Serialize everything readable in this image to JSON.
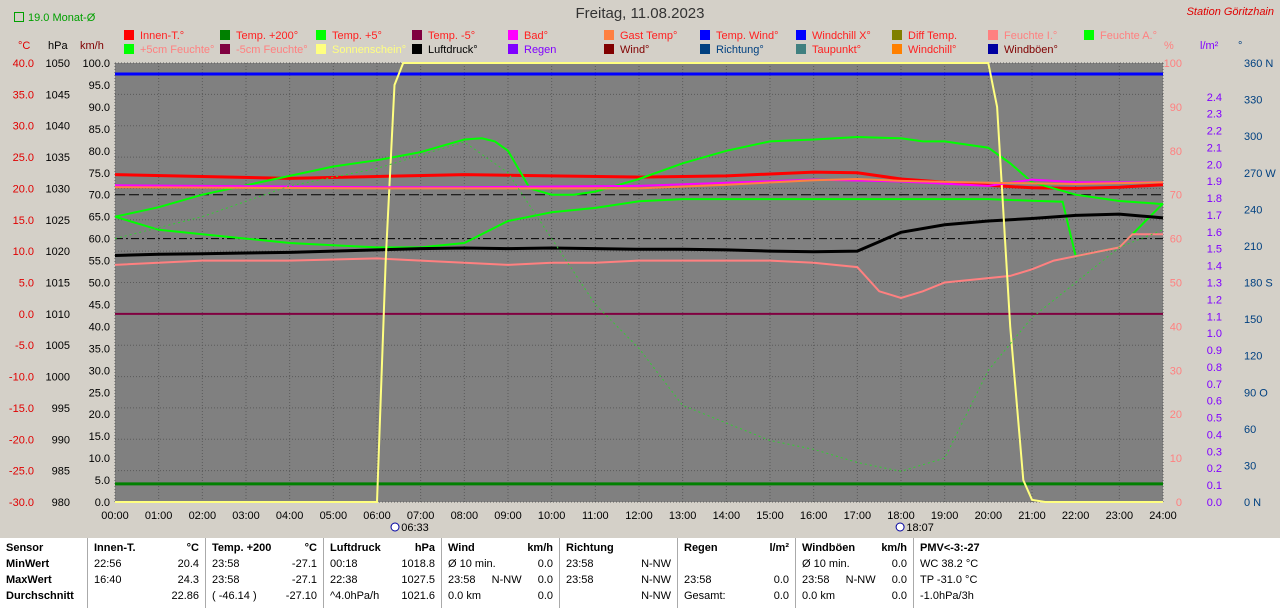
{
  "title": "Freitag, 11.08.2023",
  "station": "Station Göritzhain",
  "average_label": "19.0 Monat-Ø",
  "units": {
    "c": "°C",
    "hpa": "hPa",
    "kmh": "km/h",
    "pct": "%",
    "lm2": "l/m²",
    "deg": "°"
  },
  "legend": [
    {
      "label": "Innen-T.°",
      "color": "#ff0000",
      "text_color": "#ff2020"
    },
    {
      "label": "Temp. +200°",
      "color": "#008000",
      "text_color": "#ff2020"
    },
    {
      "label": "Temp. +5°",
      "color": "#00ff00",
      "text_color": "#ff2020"
    },
    {
      "label": "Temp. -5°",
      "color": "#800040",
      "text_color": "#ff2020"
    },
    {
      "label": "Bad°",
      "color": "#ff00ff",
      "text_color": "#ff2020"
    },
    {
      "label": "Gast Temp°",
      "color": "#ff8040",
      "text_color": "#ff2020"
    },
    {
      "label": "Temp. Wind°",
      "color": "#0000ff",
      "text_color": "#ff2020"
    },
    {
      "label": "Windchill X°",
      "color": "#0000ff",
      "text_color": "#ff2020"
    },
    {
      "label": "Diff Temp.",
      "color": "#808000",
      "text_color": "#ff2020"
    },
    {
      "label": "Feuchte I.°",
      "color": "#ff8080",
      "text_color": "#ff8080"
    },
    {
      "label": "Feuchte A.°",
      "color": "#00ff00",
      "text_color": "#ff8080"
    },
    {
      "label": "+5cm Feuchte°",
      "color": "#00ff00",
      "text_color": "#ff8080"
    },
    {
      "label": "-5cm Feuchte°",
      "color": "#800040",
      "text_color": "#ff8080"
    },
    {
      "label": "Sonnenschein°",
      "color": "#ffff80",
      "text_color": "#ffff80"
    },
    {
      "label": "Luftdruck°",
      "color": "#000000",
      "text_color": "#000000"
    },
    {
      "label": "Regen",
      "color": "#8000ff",
      "text_color": "#8000ff"
    },
    {
      "label": "Wind°",
      "color": "#800000",
      "text_color": "#800000"
    },
    {
      "label": "Richtung°",
      "color": "#004080",
      "text_color": "#004080"
    },
    {
      "label": "Taupunkt°",
      "color": "#408080",
      "text_color": "#ff2020"
    },
    {
      "label": "Windchill°",
      "color": "#ff8000",
      "text_color": "#ff2020"
    },
    {
      "label": "Windböen°",
      "color": "#0000a0",
      "text_color": "#800000"
    }
  ],
  "chart_data": {
    "type": "line",
    "title": "Freitag, 11.08.2023",
    "x_ticks": [
      "00:00",
      "01:00",
      "02:00",
      "03:00",
      "04:00",
      "05:00",
      "06:00",
      "07:00",
      "08:00",
      "09:00",
      "10:00",
      "11:00",
      "12:00",
      "13:00",
      "14:00",
      "15:00",
      "16:00",
      "17:00",
      "18:00",
      "19:00",
      "20:00",
      "21:00",
      "22:00",
      "23:00",
      "24:00"
    ],
    "axes": {
      "temp_c": [
        "40.0",
        "35.0",
        "30.0",
        "25.0",
        "20.0",
        "15.0",
        "10.0",
        "5.0",
        "0.0",
        "-5.0",
        "-10.0",
        "-15.0",
        "-20.0",
        "-25.0",
        "-30.0"
      ],
      "pressure_hpa": [
        "1050",
        "1045",
        "1040",
        "1035",
        "1030",
        "1025",
        "1020",
        "1015",
        "1010",
        "1005",
        "1000",
        "995",
        "990",
        "985",
        "980"
      ],
      "wind_kmh": [
        "100.0",
        "95.0",
        "90.0",
        "85.0",
        "80.0",
        "75.0",
        "70.0",
        "65.0",
        "60.0",
        "55.0",
        "50.0",
        "45.0",
        "40.0",
        "35.0",
        "30.0",
        "25.0",
        "20.0",
        "15.0",
        "10.0",
        "5.0",
        "0.0"
      ],
      "humidity_pct": [
        "100",
        "90",
        "80",
        "70",
        "60",
        "50",
        "40",
        "30",
        "20",
        "10",
        "0"
      ],
      "rain_lm2": [
        "2.4",
        "2.3",
        "2.2",
        "2.1",
        "2.0",
        "1.9",
        "1.8",
        "1.7",
        "1.6",
        "1.5",
        "1.4",
        "1.3",
        "1.2",
        "1.1",
        "1.0",
        "0.9",
        "0.8",
        "0.7",
        "0.6",
        "0.5",
        "0.4",
        "0.3",
        "0.2",
        "0.1",
        "0.0"
      ],
      "direction_deg": [
        "360 N",
        "330",
        "300",
        "270 W",
        "240",
        "210",
        "180 S",
        "150",
        "120",
        "90 O",
        "60",
        "30",
        "0 N"
      ]
    },
    "ylim_temp": [
      -30,
      40
    ],
    "ylim_humidity": [
      0,
      100
    ],
    "sunrise": "06:33",
    "sunset": "18:07",
    "series": [
      {
        "name": "Innen-T.°",
        "color": "#ff0000",
        "axis": "temp",
        "points": [
          [
            0,
            22.2
          ],
          [
            2,
            21.9
          ],
          [
            4,
            21.6
          ],
          [
            6,
            21.9
          ],
          [
            8,
            22.2
          ],
          [
            10,
            22.0
          ],
          [
            12,
            21.8
          ],
          [
            14,
            22.0
          ],
          [
            16,
            22.6
          ],
          [
            17,
            22.5
          ],
          [
            18,
            21.5
          ],
          [
            19,
            21.0
          ],
          [
            20,
            20.5
          ],
          [
            21,
            20.1
          ],
          [
            22,
            20.0
          ],
          [
            23,
            20.2
          ],
          [
            24,
            20.6
          ]
        ]
      },
      {
        "name": "Temp. +5°",
        "color": "#00ff00",
        "axis": "temp",
        "points": [
          [
            0,
            15.5
          ],
          [
            1,
            17
          ],
          [
            2,
            19
          ],
          [
            3,
            20.5
          ],
          [
            4,
            22
          ],
          [
            5,
            23.5
          ],
          [
            6,
            24.5
          ],
          [
            7,
            25.8
          ],
          [
            8,
            27.8
          ],
          [
            8.4,
            28
          ],
          [
            8.7,
            27.5
          ],
          [
            9,
            26
          ],
          [
            9.5,
            20
          ],
          [
            10,
            19
          ],
          [
            10.5,
            19
          ],
          [
            11,
            19.5
          ],
          [
            12,
            21.5
          ],
          [
            13,
            24
          ],
          [
            14,
            26
          ],
          [
            15,
            27.5
          ],
          [
            16,
            27.8
          ],
          [
            17,
            28.2
          ],
          [
            18,
            28
          ],
          [
            18.5,
            27.5
          ],
          [
            19,
            27.5
          ],
          [
            20,
            26.5
          ],
          [
            20.5,
            24
          ],
          [
            21,
            21
          ],
          [
            22,
            19
          ],
          [
            23,
            18
          ],
          [
            24,
            17.5
          ]
        ]
      },
      {
        "name": "Feuchte A.°",
        "color": "#00ff00",
        "axis": "hum",
        "points": [
          [
            0,
            65
          ],
          [
            1,
            62
          ],
          [
            2,
            61
          ],
          [
            3,
            60
          ],
          [
            4,
            59
          ],
          [
            5,
            58.5
          ],
          [
            6,
            58
          ],
          [
            7,
            58
          ],
          [
            8,
            59
          ],
          [
            9,
            64
          ],
          [
            10,
            66
          ],
          [
            11,
            67
          ],
          [
            12,
            68.5
          ],
          [
            13,
            69
          ],
          [
            14,
            69
          ],
          [
            15,
            69
          ],
          [
            16,
            69
          ],
          [
            17,
            69
          ],
          [
            18,
            69
          ],
          [
            19,
            69
          ],
          [
            20,
            69
          ],
          [
            21,
            68.6
          ],
          [
            21.7,
            68.4
          ],
          [
            22,
            56
          ],
          [
            23,
            58
          ],
          [
            24,
            68
          ]
        ]
      },
      {
        "name": "Feuchte I.°",
        "color": "#ff8080",
        "axis": "hum",
        "points": [
          [
            0,
            54
          ],
          [
            2,
            55
          ],
          [
            4,
            55
          ],
          [
            6,
            55.5
          ],
          [
            7,
            55
          ],
          [
            8,
            54.5
          ],
          [
            9,
            54
          ],
          [
            10,
            54.5
          ],
          [
            11,
            54.5
          ],
          [
            12,
            55
          ],
          [
            13,
            55
          ],
          [
            14,
            55
          ],
          [
            15,
            55
          ],
          [
            16,
            54.5
          ],
          [
            17,
            53.5
          ],
          [
            17.5,
            48
          ],
          [
            18,
            46.5
          ],
          [
            18.5,
            48
          ],
          [
            19,
            50
          ],
          [
            20,
            51
          ],
          [
            20.5,
            51.5
          ],
          [
            21,
            53
          ],
          [
            21.5,
            55
          ],
          [
            22,
            56
          ],
          [
            23,
            58
          ],
          [
            23.3,
            61
          ],
          [
            24,
            61
          ]
        ]
      },
      {
        "name": "Luftdruck°",
        "color": "#000000",
        "axis": "press",
        "points": [
          [
            0,
            1019.3
          ],
          [
            1,
            1019.5
          ],
          [
            2,
            1019.6
          ],
          [
            3,
            1019.7
          ],
          [
            4,
            1019.8
          ],
          [
            5,
            1020.0
          ],
          [
            6,
            1020.2
          ],
          [
            7,
            1020.4
          ],
          [
            8,
            1020.5
          ],
          [
            9,
            1020.4
          ],
          [
            10,
            1020.5
          ],
          [
            11,
            1020.4
          ],
          [
            12,
            1020.3
          ],
          [
            13,
            1020.3
          ],
          [
            14,
            1020.2
          ],
          [
            15,
            1020.0
          ],
          [
            16,
            1019.9
          ],
          [
            17,
            1020.0
          ],
          [
            17.5,
            1021.5
          ],
          [
            18,
            1023.0
          ],
          [
            19,
            1024.2
          ],
          [
            20,
            1024.8
          ],
          [
            21,
            1025.2
          ],
          [
            22,
            1025.7
          ],
          [
            23,
            1025.9
          ],
          [
            24,
            1025.3
          ]
        ]
      },
      {
        "name": "Sonnenschein°",
        "color": "#ffff80",
        "axis": "hum",
        "points": [
          [
            0,
            0
          ],
          [
            6,
            0
          ],
          [
            6.2,
            55
          ],
          [
            6.4,
            95
          ],
          [
            6.6,
            100
          ],
          [
            20,
            100
          ],
          [
            20.2,
            90
          ],
          [
            20.5,
            40
          ],
          [
            20.8,
            5
          ],
          [
            21,
            0.5
          ],
          [
            21.3,
            0
          ],
          [
            24,
            0
          ]
        ]
      },
      {
        "name": "Bad°",
        "color": "#ff00ff",
        "axis": "temp",
        "points": [
          [
            0,
            20.5
          ],
          [
            4,
            20.3
          ],
          [
            6,
            20.2
          ],
          [
            8,
            20.2
          ],
          [
            12,
            20.4
          ],
          [
            14,
            20.9
          ],
          [
            16,
            21.4
          ],
          [
            18,
            21.1
          ],
          [
            20,
            20.4
          ],
          [
            21,
            21.4
          ],
          [
            22,
            21.0
          ],
          [
            24,
            21.0
          ]
        ]
      },
      {
        "name": "Gast Temp°",
        "color": "#ff8040",
        "axis": "temp",
        "points": [
          [
            0,
            20.2
          ],
          [
            6,
            20.0
          ],
          [
            10,
            20.0
          ],
          [
            12,
            20.0
          ],
          [
            14,
            20.6
          ],
          [
            16,
            21.3
          ],
          [
            17,
            21.5
          ],
          [
            18,
            21.2
          ],
          [
            20,
            20.9
          ],
          [
            22,
            20.7
          ],
          [
            24,
            21.0
          ]
        ]
      }
    ]
  },
  "stats": {
    "sensor": {
      "header": "Sensor",
      "min": "MinWert",
      "max": "MaxWert",
      "avg": "Durchschnitt"
    },
    "innen": {
      "header": "Innen-T.",
      "unit": "°C",
      "min_t": "22:56",
      "min_v": "20.4",
      "max_t": "16:40",
      "max_v": "24.3",
      "avg_t": "",
      "avg_v": "22.86"
    },
    "temp200": {
      "header": "Temp. +200",
      "unit": "°C",
      "min_t": "23:58",
      "min_v": "-27.1",
      "max_t": "23:58",
      "max_v": "-27.1",
      "avg_t": "( -46.14 )",
      "avg_v": "-27.10"
    },
    "druck": {
      "header": "Luftdruck",
      "unit": "hPa",
      "min_t": "00:18",
      "min_v": "1018.8",
      "max_t": "22:38",
      "max_v": "1027.5",
      "avg_t": "^4.0hPa/h",
      "avg_v": "1021.6"
    },
    "wind": {
      "header": "Wind",
      "unit": "km/h",
      "min_t": "Ø 10 min.",
      "min_v": "0.0",
      "max_t": "23:58",
      "max_d": "N-NW",
      "max_v": "0.0",
      "avg_t": "0.0 km",
      "avg_v": "0.0"
    },
    "richtung": {
      "header": "Richtung",
      "min_t": "23:58",
      "min_v": "N-NW",
      "max_t": "23:58",
      "max_v": "N-NW",
      "avg_v": "N-NW"
    },
    "regen": {
      "header": "Regen",
      "unit": "l/m²",
      "max_t": "23:58",
      "max_v": "0.0",
      "avg_t": "Gesamt:",
      "avg_v": "0.0"
    },
    "boen": {
      "header": "Windböen",
      "unit": "km/h",
      "min_t": "Ø 10 min.",
      "min_v": "0.0",
      "max_t": "23:58",
      "max_d": "N-NW",
      "max_v": "0.0",
      "avg_t": "0.0 km",
      "avg_v": "0.0"
    },
    "pmv": {
      "header": "PMV<-3:-27",
      "min": "WC 38.2 °C",
      "max": "TP -31.0 °C",
      "avg": "-1.0hPa/3h"
    }
  }
}
